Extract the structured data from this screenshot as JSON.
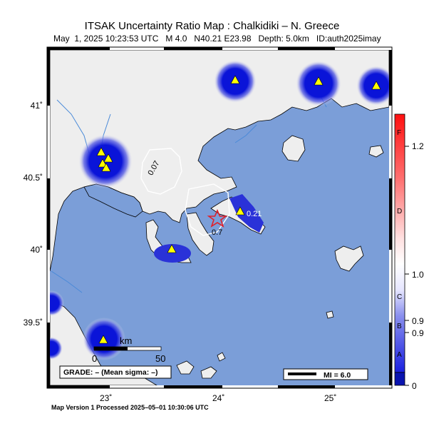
{
  "header": {
    "title": "ITSAK Uncertainty Ratio Map : Chalkidiki – N. Greece",
    "subtitle": "May  1, 2025 10:23:53 UTC   M 4.0   N40.21 E23.98   Depth: 5.0km   ID:auth2025imay"
  },
  "map": {
    "lon_ticks": [
      "23˚",
      "24˚",
      "25˚"
    ],
    "lat_ticks": [
      "41˚",
      "40.5˚",
      "40˚",
      "39.5˚"
    ],
    "contour_labels": [
      "0.07",
      "0.7",
      "0.21"
    ],
    "scale_bar": {
      "unit": "km",
      "zero": "0",
      "max": "50"
    },
    "grade_box": "GRADE: – (Mean sigma: –)",
    "mi_legend": "MI = 6.0",
    "colors": {
      "sea": "#7b9ed8",
      "land": "#eeeeee",
      "station": "#ffff00",
      "epicenter": "#e0202a",
      "high_ratio_blue": "#0a14d8"
    }
  },
  "colorbar": {
    "letters": [
      "F",
      "D",
      "C",
      "B",
      "A"
    ],
    "values": [
      "1.2",
      "1.0",
      "0.9",
      "0.9",
      "0"
    ]
  },
  "footer": "Map Version 1 Processed 2025–05–01 10:30:06 UTC"
}
